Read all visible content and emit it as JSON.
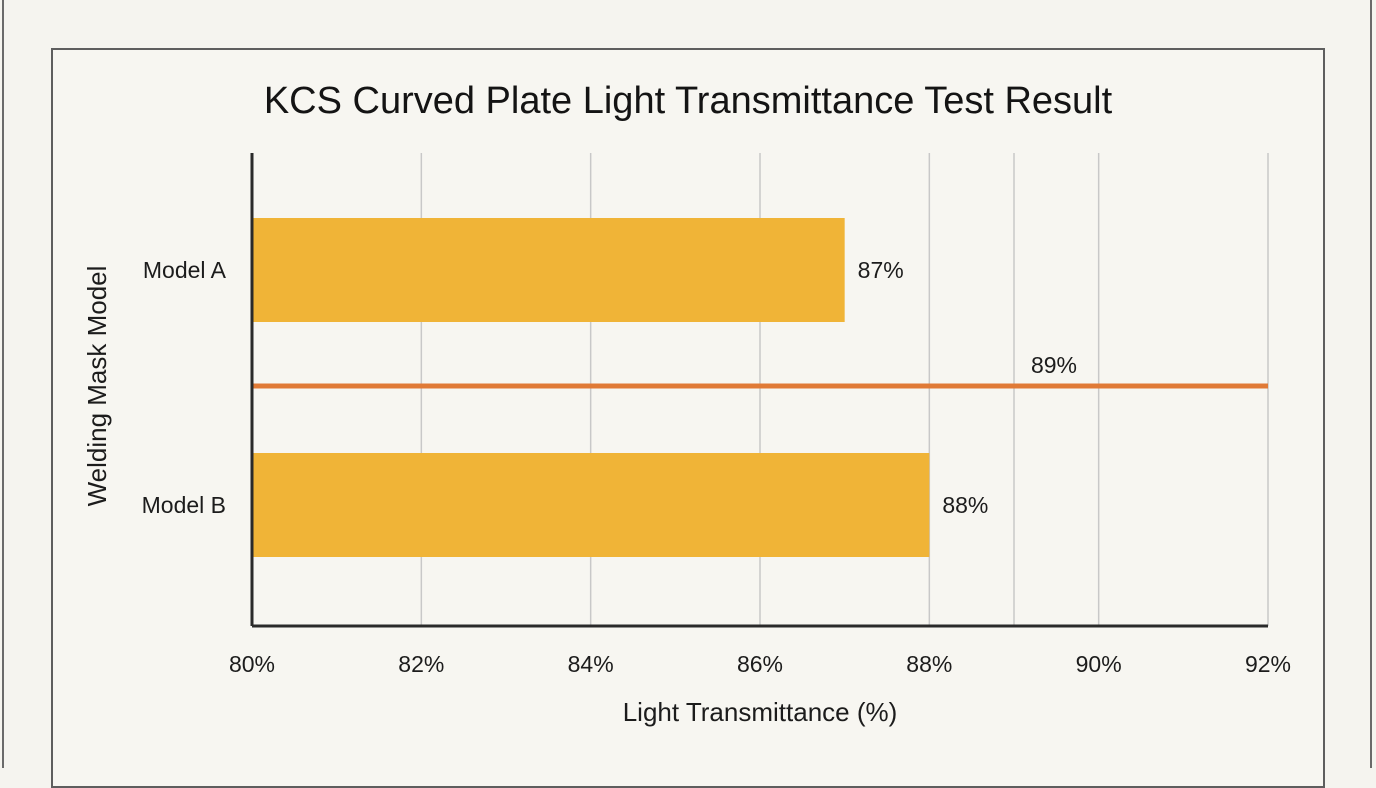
{
  "chart_data": {
    "type": "bar",
    "orientation": "horizontal",
    "title": "KCS Curved Plate Light Transmittance Test Result",
    "xlabel": "Light Transmittance (%)",
    "ylabel": "Welding Mask Model",
    "categories": [
      "Model A",
      "Model B"
    ],
    "values": [
      87,
      88
    ],
    "value_labels": [
      "87%",
      "88%"
    ],
    "xlim": [
      80,
      92
    ],
    "x_ticks": [
      80,
      82,
      84,
      86,
      88,
      90,
      92
    ],
    "x_tick_labels": [
      "80%",
      "82%",
      "84%",
      "86%",
      "88%",
      "90%",
      "92%"
    ],
    "reference_line": {
      "value": 89,
      "label": "89%",
      "orientation": "horizontal-across"
    },
    "grid": true,
    "legend": "none",
    "colors": {
      "bar": "#f0b437",
      "reference_line": "#e07a36",
      "grid": "#c8c8c8",
      "axis": "#2a2a2a"
    }
  }
}
